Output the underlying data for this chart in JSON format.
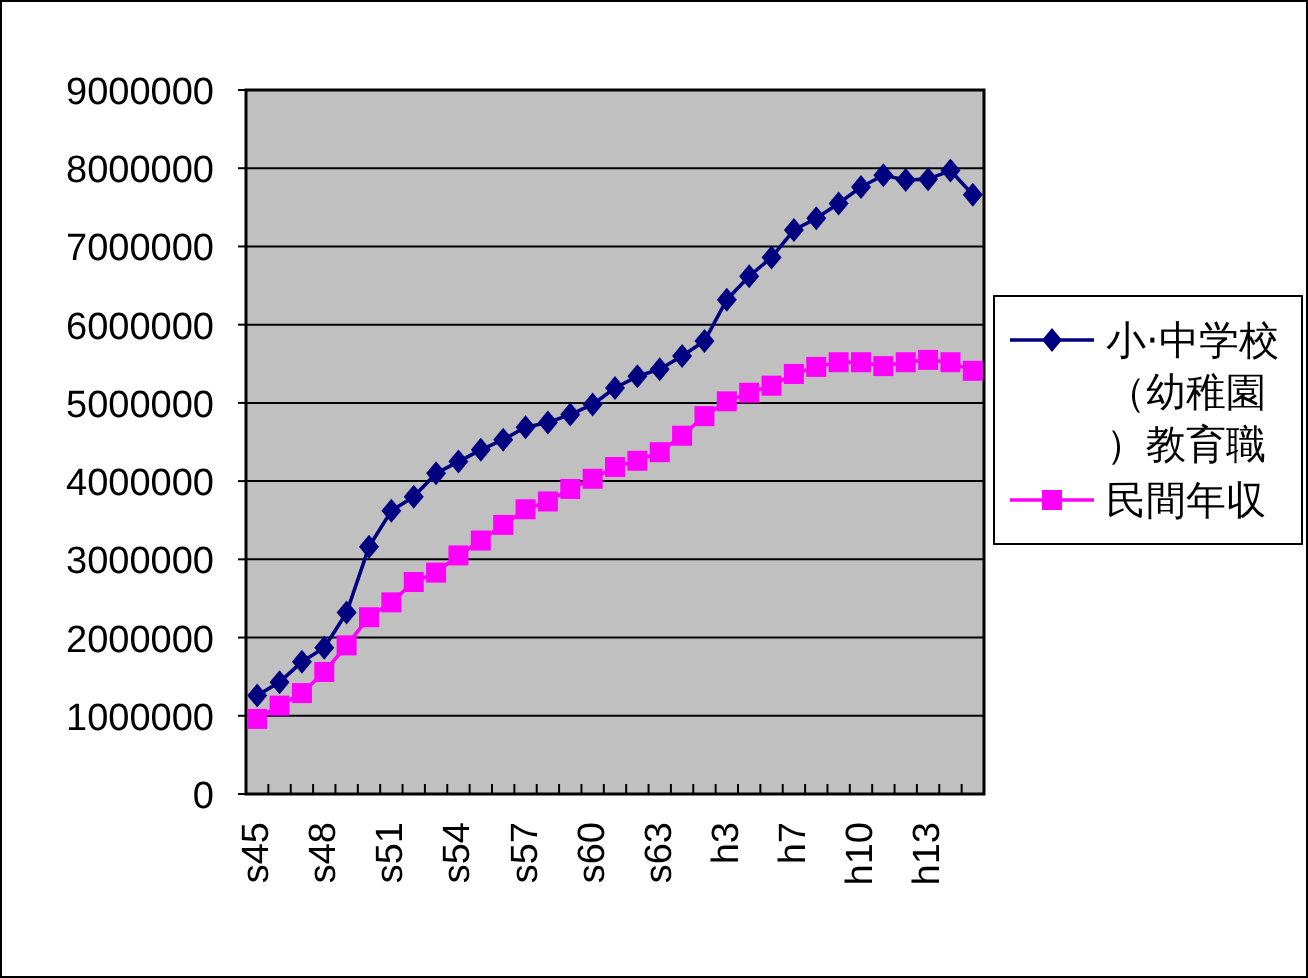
{
  "chart_data": {
    "type": "line",
    "categories": [
      "s45",
      null,
      null,
      "s48",
      null,
      null,
      "s51",
      null,
      null,
      "s54",
      null,
      null,
      "s57",
      null,
      null,
      "s60",
      null,
      null,
      "s63",
      null,
      null,
      "h3",
      null,
      null,
      "h7",
      null,
      null,
      "h10",
      null,
      null,
      "h13",
      null,
      null
    ],
    "series": [
      {
        "name": "小·中学校（幼稚園）教育職",
        "color": "#000080",
        "marker": "diamond",
        "values": [
          1260000,
          1430000,
          1690000,
          1870000,
          2320000,
          3160000,
          3620000,
          3800000,
          4100000,
          4250000,
          4400000,
          4530000,
          4690000,
          4750000,
          4850000,
          4980000,
          5190000,
          5340000,
          5430000,
          5600000,
          5790000,
          6320000,
          6620000,
          6860000,
          7210000,
          7360000,
          7550000,
          7760000,
          7910000,
          7850000,
          7860000,
          7970000,
          7660000
        ]
      },
      {
        "name": "民間年収",
        "color": "#ff00ff",
        "marker": "square",
        "values": [
          960000,
          1130000,
          1290000,
          1560000,
          1900000,
          2260000,
          2450000,
          2710000,
          2830000,
          3050000,
          3240000,
          3440000,
          3640000,
          3740000,
          3900000,
          4030000,
          4180000,
          4260000,
          4370000,
          4580000,
          4830000,
          5020000,
          5130000,
          5220000,
          5370000,
          5460000,
          5520000,
          5520000,
          5470000,
          5520000,
          5550000,
          5520000,
          5410000
        ]
      }
    ],
    "ylim": [
      0,
      9000000
    ],
    "yticks": [
      0,
      1000000,
      2000000,
      3000000,
      4000000,
      5000000,
      6000000,
      7000000,
      8000000,
      9000000
    ],
    "grid": "y",
    "legend": "right",
    "line_style": "solid"
  }
}
